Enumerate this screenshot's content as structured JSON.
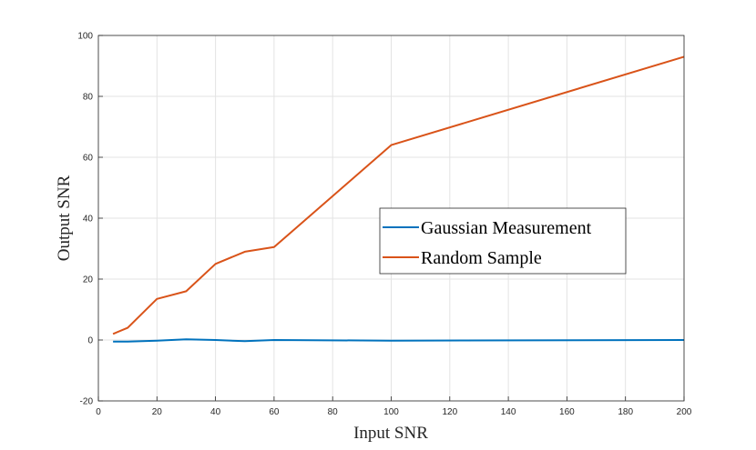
{
  "chart_data": {
    "type": "line",
    "xlabel": "Input SNR",
    "ylabel": "Output SNR",
    "xlim": [
      0,
      200
    ],
    "ylim": [
      -20,
      100
    ],
    "xticks": [
      0,
      20,
      40,
      60,
      80,
      100,
      120,
      140,
      160,
      180,
      200
    ],
    "yticks": [
      -20,
      0,
      20,
      40,
      60,
      80,
      100
    ],
    "grid": true,
    "legend_position": "center-right",
    "series": [
      {
        "name": "Gaussian Measurement",
        "color": "#0072bd",
        "x": [
          5,
          10,
          20,
          30,
          40,
          50,
          60,
          100,
          200
        ],
        "y": [
          -0.5,
          -0.5,
          -0.2,
          0.2,
          0.0,
          -0.4,
          0.0,
          -0.2,
          0.0
        ]
      },
      {
        "name": "Random Sample",
        "color": "#d95319",
        "x": [
          5,
          10,
          20,
          30,
          40,
          50,
          60,
          100,
          200
        ],
        "y": [
          2,
          4,
          13.5,
          16,
          25,
          29,
          30.5,
          64,
          93
        ]
      }
    ]
  }
}
